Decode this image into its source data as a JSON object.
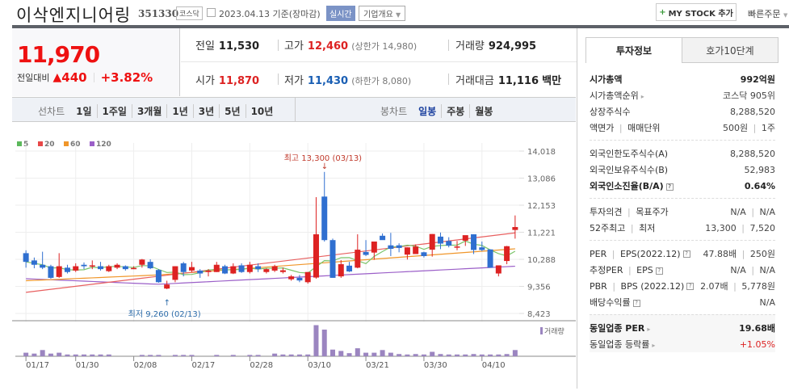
{
  "header": {
    "title": "이삭엔지니어링",
    "code": "351330",
    "market": "코스닥",
    "date": "2023.04.13 기준(장마감)",
    "realtime": "실시간",
    "corp_info": "기업개요",
    "mystock": "MY STOCK 추가",
    "quick_order": "빠른주문"
  },
  "summary": {
    "price": "11,970",
    "change_label": "전일대비",
    "change": "440",
    "change_pct": "+3.82%"
  },
  "quote": {
    "prev_label": "전일",
    "prev": "11,530",
    "high_label": "고가",
    "high": "12,460",
    "upper_label": "(상한가 14,980)",
    "volume_label": "거래량",
    "volume": "924,995",
    "open_label": "시가",
    "open": "11,870",
    "low_label": "저가",
    "low": "11,430",
    "lower_label": "(하한가 8,080)",
    "amount_label": "거래대금",
    "amount": "11,116",
    "amount_unit": "백만"
  },
  "tabs": {
    "line_label": "선차트",
    "line": [
      "1일",
      "1주일",
      "3개월",
      "1년",
      "3년",
      "5년",
      "10년"
    ],
    "candle_label": "봉차트",
    "candle": [
      "일봉",
      "주봉",
      "월봉"
    ],
    "candle_selected": 0
  },
  "panel": {
    "tabs": [
      "투자정보",
      "호가10단계"
    ],
    "rows1": [
      {
        "k": "시가총액",
        "v": "992억원",
        "bold": true
      },
      {
        "k": "시가총액순위",
        "v": "코스닥 905위",
        "arrow": true
      },
      {
        "k": "상장주식수",
        "v": "8,288,520"
      },
      {
        "k": "액면가 | 매매단위",
        "v": "500원 | 1주"
      }
    ],
    "rows2": [
      {
        "k": "외국인한도주식수(A)",
        "v": "8,288,520"
      },
      {
        "k": "외국인보유주식수(B)",
        "v": "52,983"
      },
      {
        "k": "외국인소진율(B/A)",
        "v": "0.64%",
        "bold": true,
        "q": true
      }
    ],
    "rows3": [
      {
        "k": "투자의견 | 목표주가",
        "v": "N/A | N/A"
      },
      {
        "k": "52주최고 | 최저",
        "v": "13,300 | 7,520"
      }
    ],
    "rows4": [
      {
        "k": "PER | EPS(2022.12)",
        "v": "47.88배 | 250원",
        "q": true
      },
      {
        "k": "추정PER | EPS",
        "v": "N/A | N/A",
        "q": true
      },
      {
        "k": "PBR | BPS (2022.12)",
        "v": "2.07배 | 5,778원",
        "q": true
      },
      {
        "k": "배당수익률",
        "v": "N/A",
        "q": true
      }
    ],
    "rows5": [
      {
        "k": "동일업종 PER",
        "v": "19.68배",
        "bold": true,
        "arrow": true
      },
      {
        "k": "동일업종 등락률",
        "v": "+1.05%",
        "arrow": true,
        "red": true
      }
    ]
  },
  "chart_data": {
    "type": "candlestick",
    "legend": [
      {
        "name": "5",
        "color": "#5cb85c"
      },
      {
        "name": "20",
        "color": "#e84848"
      },
      {
        "name": "60",
        "color": "#f0962a"
      },
      {
        "name": "120",
        "color": "#9b5fc8"
      }
    ],
    "yticks": [
      14018,
      13086,
      12153,
      11221,
      10288,
      9356,
      8423
    ],
    "ylim": [
      8423,
      14018
    ],
    "xticks": [
      "01/17",
      "01/30",
      "02/08",
      "02/17",
      "02/28",
      "03/10",
      "03/21",
      "03/30",
      "04/10"
    ],
    "annot_high": "최고 13,300 (03/13)",
    "annot_low": "최저 9,260 (02/13)",
    "volume_label": "거래량",
    "candles": [
      [
        10500,
        10200,
        10600,
        10000
      ],
      [
        10250,
        10100,
        10350,
        9980
      ],
      [
        10100,
        10000,
        10550,
        9950
      ],
      [
        10050,
        9650,
        10100,
        9620
      ],
      [
        9680,
        10050,
        10500,
        9650
      ],
      [
        10000,
        9850,
        10100,
        9800
      ],
      [
        9900,
        10050,
        10150,
        9850
      ],
      [
        10100,
        10050,
        10180,
        9950
      ],
      [
        10050,
        10080,
        10250,
        9950
      ],
      [
        10050,
        9950,
        10200,
        9900
      ],
      [
        9880,
        10050,
        10100,
        9850
      ],
      [
        10000,
        10100,
        10150,
        9950
      ],
      [
        10050,
        9950,
        10080,
        9900
      ],
      [
        9980,
        9990,
        10050,
        9950
      ],
      [
        10100,
        10280,
        10300,
        10000
      ],
      [
        10200,
        9980,
        10290,
        9950
      ],
      [
        9920,
        9500,
        9950,
        9480
      ],
      [
        9280,
        9420,
        9550,
        9260
      ],
      [
        9580,
        10050,
        10050,
        9500
      ],
      [
        10150,
        9850,
        10200,
        9700
      ],
      [
        9900,
        10020,
        10200,
        9850
      ],
      [
        9900,
        9800,
        9950,
        9650
      ],
      [
        9850,
        9900,
        9950,
        9700
      ],
      [
        9850,
        10100,
        10200,
        9850
      ],
      [
        10050,
        9800,
        10100,
        9780
      ],
      [
        9800,
        10050,
        10150,
        9780
      ],
      [
        10080,
        9850,
        10150,
        9820
      ],
      [
        9850,
        10100,
        10200,
        9800
      ],
      [
        10050,
        9950,
        10150,
        9850
      ],
      [
        9850,
        9950,
        9980,
        9800
      ],
      [
        9900,
        10050,
        10100,
        9850
      ],
      [
        9850,
        9910,
        10000,
        9800
      ],
      [
        9600,
        9700,
        9750,
        9550
      ],
      [
        9650,
        9560,
        9750,
        9500
      ],
      [
        9500,
        9850,
        9850,
        9450
      ],
      [
        9660,
        11150,
        12430,
        9620
      ],
      [
        12450,
        10950,
        13300,
        10900
      ],
      [
        10950,
        9650,
        11000,
        9650
      ],
      [
        9700,
        10120,
        10260,
        9650
      ],
      [
        10070,
        9870,
        10200,
        9850
      ],
      [
        10000,
        10620,
        11150,
        9980
      ],
      [
        10540,
        10440,
        10950,
        10400
      ],
      [
        10520,
        10900,
        10880,
        10270
      ],
      [
        11100,
        10950,
        11180,
        11000
      ],
      [
        10770,
        10650,
        11200,
        10400
      ],
      [
        10770,
        10680,
        10840,
        10530
      ],
      [
        10450,
        10700,
        10700,
        10280
      ],
      [
        10470,
        10730,
        10800,
        10500
      ],
      [
        10530,
        10400,
        10550,
        10350
      ],
      [
        10620,
        11160,
        11160,
        10380
      ],
      [
        11070,
        10830,
        11210,
        10640
      ],
      [
        10920,
        10760,
        11050,
        10700
      ],
      [
        10720,
        10730,
        10920,
        10600
      ],
      [
        10930,
        11120,
        11080,
        10750
      ],
      [
        11150,
        10610,
        11150,
        10470
      ],
      [
        10700,
        10610,
        10900,
        10570
      ],
      [
        10630,
        10000,
        10630,
        10000
      ],
      [
        9800,
        10080,
        10070,
        9700
      ],
      [
        10230,
        10740,
        10750,
        10120
      ],
      [
        11300,
        11400,
        11800,
        11000
      ]
    ],
    "volumes": [
      8,
      6,
      14,
      6,
      8,
      4,
      4,
      4,
      4,
      4,
      4,
      0,
      0,
      0,
      3,
      3,
      3,
      0,
      3,
      3,
      3,
      0,
      0,
      3,
      0,
      3,
      0,
      3,
      3,
      0,
      6,
      4,
      4,
      4,
      4,
      70,
      60,
      15,
      12,
      7,
      18,
      8,
      8,
      14,
      8,
      5,
      4,
      5,
      4,
      10,
      5,
      4,
      4,
      4,
      5,
      4,
      4,
      4,
      5,
      14
    ]
  }
}
